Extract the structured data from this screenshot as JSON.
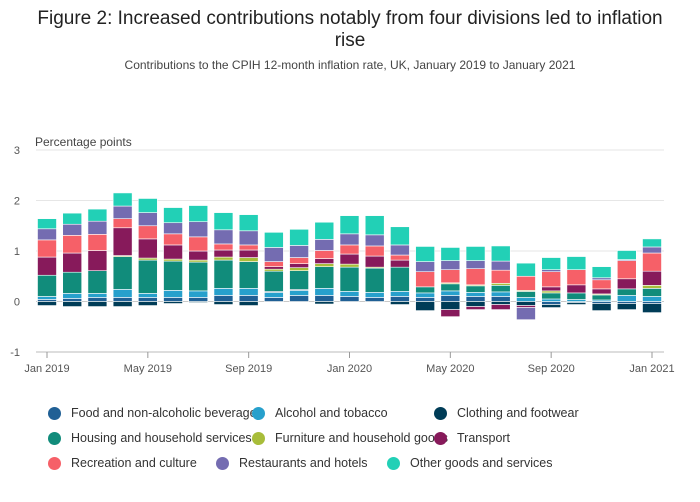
{
  "chart_data": {
    "type": "bar",
    "stacked": true,
    "title": "Figure 2: Increased contributions notably from four divisions led to inflation rise",
    "subtitle": "Contributions to the CPIH 12-month inflation rate, UK, January 2019 to January 2021",
    "ylabel": "Percentage points",
    "ylim": [
      -1,
      3
    ],
    "yticks": [
      "3",
      "2",
      "1",
      "0",
      "-1"
    ],
    "grid": true,
    "legend_position": "bottom",
    "x_tick_labels": [
      "Jan 2019",
      "May 2019",
      "Sep 2019",
      "Jan 2020",
      "May 2020",
      "Sep 2020",
      "Jan 2021"
    ],
    "categories": [
      "Jan 2019",
      "Feb 2019",
      "Mar 2019",
      "Apr 2019",
      "May 2019",
      "Jun 2019",
      "Jul 2019",
      "Aug 2019",
      "Sep 2019",
      "Oct 2019",
      "Nov 2019",
      "Dec 2019",
      "Jan 2020",
      "Feb 2020",
      "Mar 2020",
      "Apr 2020",
      "May 2020",
      "Jun 2020",
      "Jul 2020",
      "Aug 2020",
      "Sep 2020",
      "Oct 2020",
      "Nov 2020",
      "Dec 2020",
      "Jan 2021"
    ],
    "series": [
      {
        "name": "Food and non-alcoholic beverages",
        "color": "#206095",
        "values": [
          0.04,
          0.06,
          0.08,
          0.08,
          0.08,
          0.08,
          0.08,
          0.12,
          0.12,
          0.08,
          0.12,
          0.12,
          0.1,
          0.08,
          0.1,
          0.08,
          0.12,
          0.1,
          0.1,
          0.0,
          -0.06,
          -0.02,
          -0.04,
          -0.04,
          -0.04
        ]
      },
      {
        "name": "Alcohol and tobacco",
        "color": "#27a0cc",
        "values": [
          0.06,
          0.1,
          0.08,
          0.16,
          0.08,
          0.14,
          0.13,
          0.14,
          0.14,
          0.1,
          0.1,
          0.14,
          0.1,
          0.1,
          0.1,
          0.09,
          0.09,
          0.08,
          0.09,
          0.08,
          0.05,
          0.04,
          0.03,
          0.12,
          0.1
        ]
      },
      {
        "name": "Clothing and footwear",
        "color": "#003c57",
        "values": [
          -0.08,
          -0.1,
          -0.1,
          -0.1,
          -0.08,
          -0.04,
          -0.02,
          -0.06,
          -0.08,
          0.02,
          0.02,
          -0.05,
          0.0,
          0.0,
          -0.06,
          -0.18,
          -0.16,
          -0.1,
          -0.06,
          -0.08,
          -0.06,
          -0.04,
          -0.14,
          -0.12,
          -0.18
        ]
      },
      {
        "name": "Housing and household services",
        "color": "#118c7b",
        "values": [
          0.42,
          0.42,
          0.45,
          0.65,
          0.66,
          0.58,
          0.57,
          0.56,
          0.53,
          0.4,
          0.37,
          0.43,
          0.48,
          0.48,
          0.48,
          0.12,
          0.14,
          0.13,
          0.13,
          0.12,
          0.12,
          0.13,
          0.1,
          0.13,
          0.16
        ]
      },
      {
        "name": "Furniture and household goods",
        "color": "#a8bd3a",
        "values": [
          0.0,
          0.0,
          0.0,
          0.02,
          0.04,
          0.04,
          0.04,
          0.06,
          0.08,
          0.04,
          0.06,
          0.06,
          0.06,
          0.02,
          0.0,
          0.0,
          0.02,
          0.02,
          0.04,
          0.02,
          0.04,
          0.0,
          0.02,
          0.0,
          0.06
        ]
      },
      {
        "name": "Transport",
        "color": "#871a5b",
        "values": [
          0.36,
          0.38,
          0.4,
          0.55,
          0.38,
          0.28,
          0.18,
          0.14,
          0.15,
          0.05,
          0.08,
          0.1,
          0.2,
          0.22,
          0.14,
          0.0,
          -0.14,
          -0.06,
          -0.1,
          -0.04,
          0.08,
          0.16,
          0.1,
          0.2,
          0.28
        ]
      },
      {
        "name": "Recreation and culture",
        "color": "#f66068",
        "values": [
          0.34,
          0.35,
          0.32,
          0.18,
          0.26,
          0.22,
          0.28,
          0.12,
          0.1,
          0.1,
          0.12,
          0.16,
          0.18,
          0.2,
          0.1,
          0.3,
          0.26,
          0.32,
          0.26,
          0.28,
          0.3,
          0.3,
          0.18,
          0.36,
          0.36
        ]
      },
      {
        "name": "Restaurants and hotels",
        "color": "#746cb1",
        "values": [
          0.22,
          0.22,
          0.26,
          0.25,
          0.26,
          0.22,
          0.3,
          0.28,
          0.28,
          0.28,
          0.24,
          0.22,
          0.22,
          0.22,
          0.2,
          0.2,
          0.18,
          0.16,
          0.18,
          -0.24,
          0.04,
          0.0,
          0.04,
          0.02,
          0.12
        ]
      },
      {
        "name": "Other goods and services",
        "color": "#22d0b6",
        "values": [
          0.2,
          0.22,
          0.24,
          0.26,
          0.28,
          0.3,
          0.32,
          0.34,
          0.32,
          0.3,
          0.32,
          0.34,
          0.36,
          0.38,
          0.36,
          0.3,
          0.26,
          0.28,
          0.3,
          0.26,
          0.24,
          0.26,
          0.22,
          0.18,
          0.16
        ]
      }
    ]
  }
}
